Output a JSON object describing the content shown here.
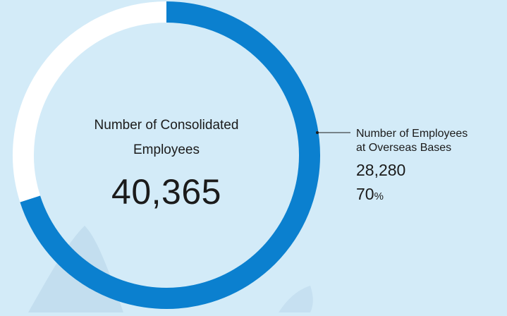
{
  "colors": {
    "background": "#d3ebf8",
    "overseas_arc": "#0b80cf",
    "remaining_arc": "#ffffff",
    "decoration": "#b9d6ea"
  },
  "center": {
    "label_line1": "Number of Consolidated",
    "label_line2": "Employees",
    "value": "40,365"
  },
  "callout": {
    "title_line1": "Number of Employees",
    "title_line2": "at Overseas Bases",
    "value": "28,280",
    "percent_number": "70",
    "percent_unit": "%"
  },
  "chart_data": {
    "type": "pie",
    "title": "",
    "total": 40365,
    "segments": [
      {
        "name": "Number of Employees at Overseas Bases",
        "value": 28280,
        "percent": 70,
        "color": "#0b80cf"
      },
      {
        "name": "",
        "value": 12085,
        "percent": 30,
        "color": "#ffffff"
      }
    ]
  }
}
